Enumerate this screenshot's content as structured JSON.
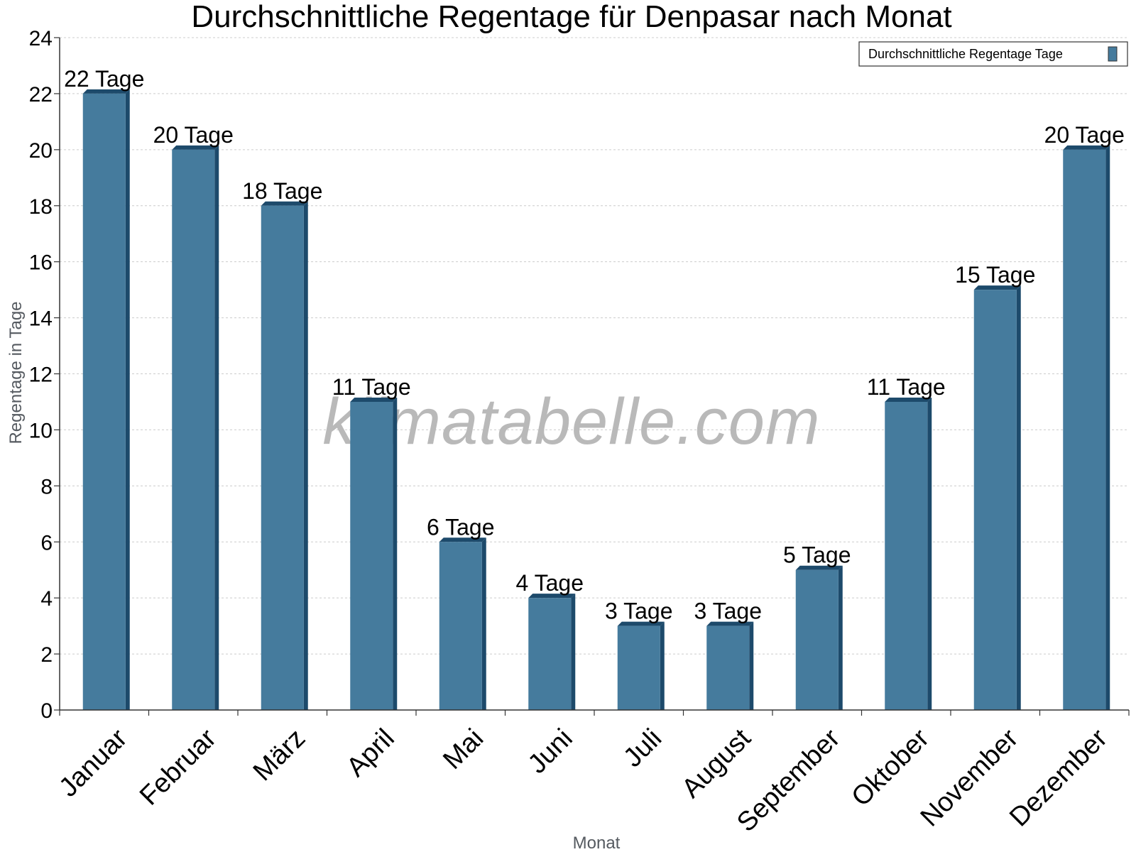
{
  "chart_data": {
    "type": "bar",
    "title": "Durchschnittliche Regentage für Denpasar nach Monat",
    "xlabel": "Monat",
    "ylabel": "Regentage in Tage",
    "ylim": [
      0,
      24
    ],
    "ytick_step": 2,
    "grid": true,
    "legend_position": "top-right",
    "categories": [
      "Januar",
      "Februar",
      "März",
      "April",
      "Mai",
      "Juni",
      "Juli",
      "August",
      "September",
      "Oktober",
      "November",
      "Dezember"
    ],
    "series": [
      {
        "name": "Durchschnittliche Regentage Tage",
        "values": [
          22,
          20,
          18,
          11,
          6,
          4,
          3,
          3,
          5,
          11,
          15,
          20
        ],
        "labels": [
          "22 Tage",
          "20 Tage",
          "18 Tage",
          "11 Tage",
          "6 Tage",
          "4 Tage",
          "3 Tage",
          "3 Tage",
          "5 Tage",
          "11 Tage",
          "15 Tage",
          "20 Tage"
        ]
      }
    ],
    "watermark": "klimatabelle.com",
    "colors": {
      "bar": "#457b9d",
      "bar_dark": "#1d4a6b",
      "grid": "#cccccc",
      "axis": "#333333"
    }
  }
}
